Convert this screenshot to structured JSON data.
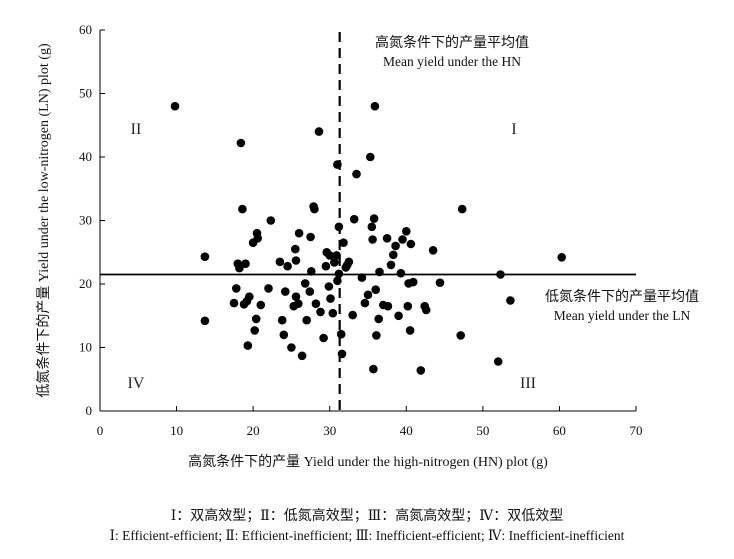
{
  "chart_data": {
    "type": "scatter",
    "xlabel": "高氮条件下的产量 Yield under the high-nitrogen (HN) plot (g)",
    "ylabel": "低氮条件下的产量 Yield under the low-nitrogen (LN) plot (g)",
    "xlim": [
      0,
      70
    ],
    "ylim": [
      0,
      60
    ],
    "xticks": [
      0,
      10,
      20,
      30,
      40,
      50,
      60,
      70
    ],
    "yticks": [
      0,
      10,
      20,
      30,
      40,
      50,
      60
    ],
    "grid": false,
    "reference_lines": {
      "vertical": {
        "x": 31.3,
        "style": "dashed",
        "label_cn": "高氮条件下的产量平均值",
        "label_en": "Mean yield under the HN"
      },
      "horizontal": {
        "y": 21.5,
        "style": "solid",
        "label_cn": "低氮条件下的产量平均值",
        "label_en": "Mean yield under the LN"
      }
    },
    "quadrants": {
      "q1": "I",
      "q2": "II",
      "q3": "III",
      "q4": "IV"
    },
    "points": [
      [
        9.8,
        48.0
      ],
      [
        13.7,
        24.3
      ],
      [
        13.7,
        14.2
      ],
      [
        17.5,
        17.0
      ],
      [
        17.8,
        19.3
      ],
      [
        18.0,
        23.2
      ],
      [
        18.2,
        22.5
      ],
      [
        18.4,
        42.2
      ],
      [
        18.6,
        31.8
      ],
      [
        18.8,
        16.8
      ],
      [
        19.0,
        23.2
      ],
      [
        19.2,
        17.3
      ],
      [
        19.5,
        18.0
      ],
      [
        19.3,
        10.3
      ],
      [
        20.0,
        26.5
      ],
      [
        20.2,
        12.7
      ],
      [
        20.5,
        28.0
      ],
      [
        20.6,
        27.2
      ],
      [
        20.4,
        14.5
      ],
      [
        21.0,
        16.7
      ],
      [
        22.3,
        30.0
      ],
      [
        22.0,
        19.3
      ],
      [
        23.5,
        23.5
      ],
      [
        23.8,
        14.3
      ],
      [
        24.0,
        12.0
      ],
      [
        24.5,
        22.8
      ],
      [
        24.2,
        18.8
      ],
      [
        25.0,
        10.0
      ],
      [
        25.3,
        16.5
      ],
      [
        25.6,
        18.0
      ],
      [
        25.6,
        23.7
      ],
      [
        25.5,
        25.5
      ],
      [
        25.9,
        16.9
      ],
      [
        26.0,
        28.0
      ],
      [
        26.4,
        8.7
      ],
      [
        26.8,
        20.1
      ],
      [
        27.0,
        14.3
      ],
      [
        27.4,
        18.8
      ],
      [
        27.6,
        22.0
      ],
      [
        27.5,
        27.4
      ],
      [
        27.9,
        32.2
      ],
      [
        28.0,
        31.8
      ],
      [
        28.2,
        16.9
      ],
      [
        28.6,
        44.0
      ],
      [
        28.8,
        15.6
      ],
      [
        29.2,
        11.5
      ],
      [
        29.5,
        22.8
      ],
      [
        29.6,
        25.0
      ],
      [
        29.9,
        19.6
      ],
      [
        30.0,
        24.5
      ],
      [
        30.1,
        17.7
      ],
      [
        30.4,
        15.4
      ],
      [
        30.6,
        23.4
      ],
      [
        30.9,
        24.5
      ],
      [
        31.0,
        38.8
      ],
      [
        31.2,
        29.0
      ],
      [
        31.0,
        20.5
      ],
      [
        31.2,
        21.6
      ],
      [
        31.5,
        12.1
      ],
      [
        31.6,
        9.0
      ],
      [
        31.8,
        26.5
      ],
      [
        32.1,
        22.6
      ],
      [
        32.3,
        23.0
      ],
      [
        32.5,
        23.5
      ],
      [
        33.0,
        15.1
      ],
      [
        33.2,
        30.2
      ],
      [
        33.5,
        37.3
      ],
      [
        34.2,
        21.0
      ],
      [
        34.6,
        17.0
      ],
      [
        35.0,
        18.3
      ],
      [
        35.3,
        40.0
      ],
      [
        35.5,
        29.0
      ],
      [
        35.6,
        27.0
      ],
      [
        35.8,
        30.3
      ],
      [
        35.7,
        6.6
      ],
      [
        35.9,
        48.0
      ],
      [
        36.0,
        19.1
      ],
      [
        36.1,
        11.9
      ],
      [
        36.4,
        14.5
      ],
      [
        36.5,
        21.9
      ],
      [
        37.0,
        16.7
      ],
      [
        37.5,
        27.2
      ],
      [
        37.6,
        16.5
      ],
      [
        38.0,
        23.0
      ],
      [
        38.3,
        24.6
      ],
      [
        38.6,
        26.0
      ],
      [
        39.0,
        15.0
      ],
      [
        39.3,
        21.7
      ],
      [
        39.5,
        27.0
      ],
      [
        40.0,
        28.3
      ],
      [
        40.2,
        16.5
      ],
      [
        40.3,
        20.1
      ],
      [
        40.5,
        12.7
      ],
      [
        40.6,
        26.3
      ],
      [
        40.9,
        20.3
      ],
      [
        41.9,
        6.4
      ],
      [
        42.4,
        16.5
      ],
      [
        42.6,
        15.9
      ],
      [
        43.5,
        25.3
      ],
      [
        44.4,
        20.2
      ],
      [
        47.1,
        11.9
      ],
      [
        47.3,
        31.8
      ],
      [
        52.0,
        7.8
      ],
      [
        52.3,
        21.5
      ],
      [
        53.6,
        17.4
      ],
      [
        60.3,
        24.2
      ]
    ]
  },
  "caption": {
    "cn": "Ⅰ：双高效型；Ⅱ：低氮高效型；Ⅲ：高氮高效型；Ⅳ：双低效型",
    "en": "Ⅰ: Efficient-efficient; Ⅱ: Efficient-inefficient; Ⅲ: Inefficient-efficient; Ⅳ: Inefficient-inefficient"
  }
}
